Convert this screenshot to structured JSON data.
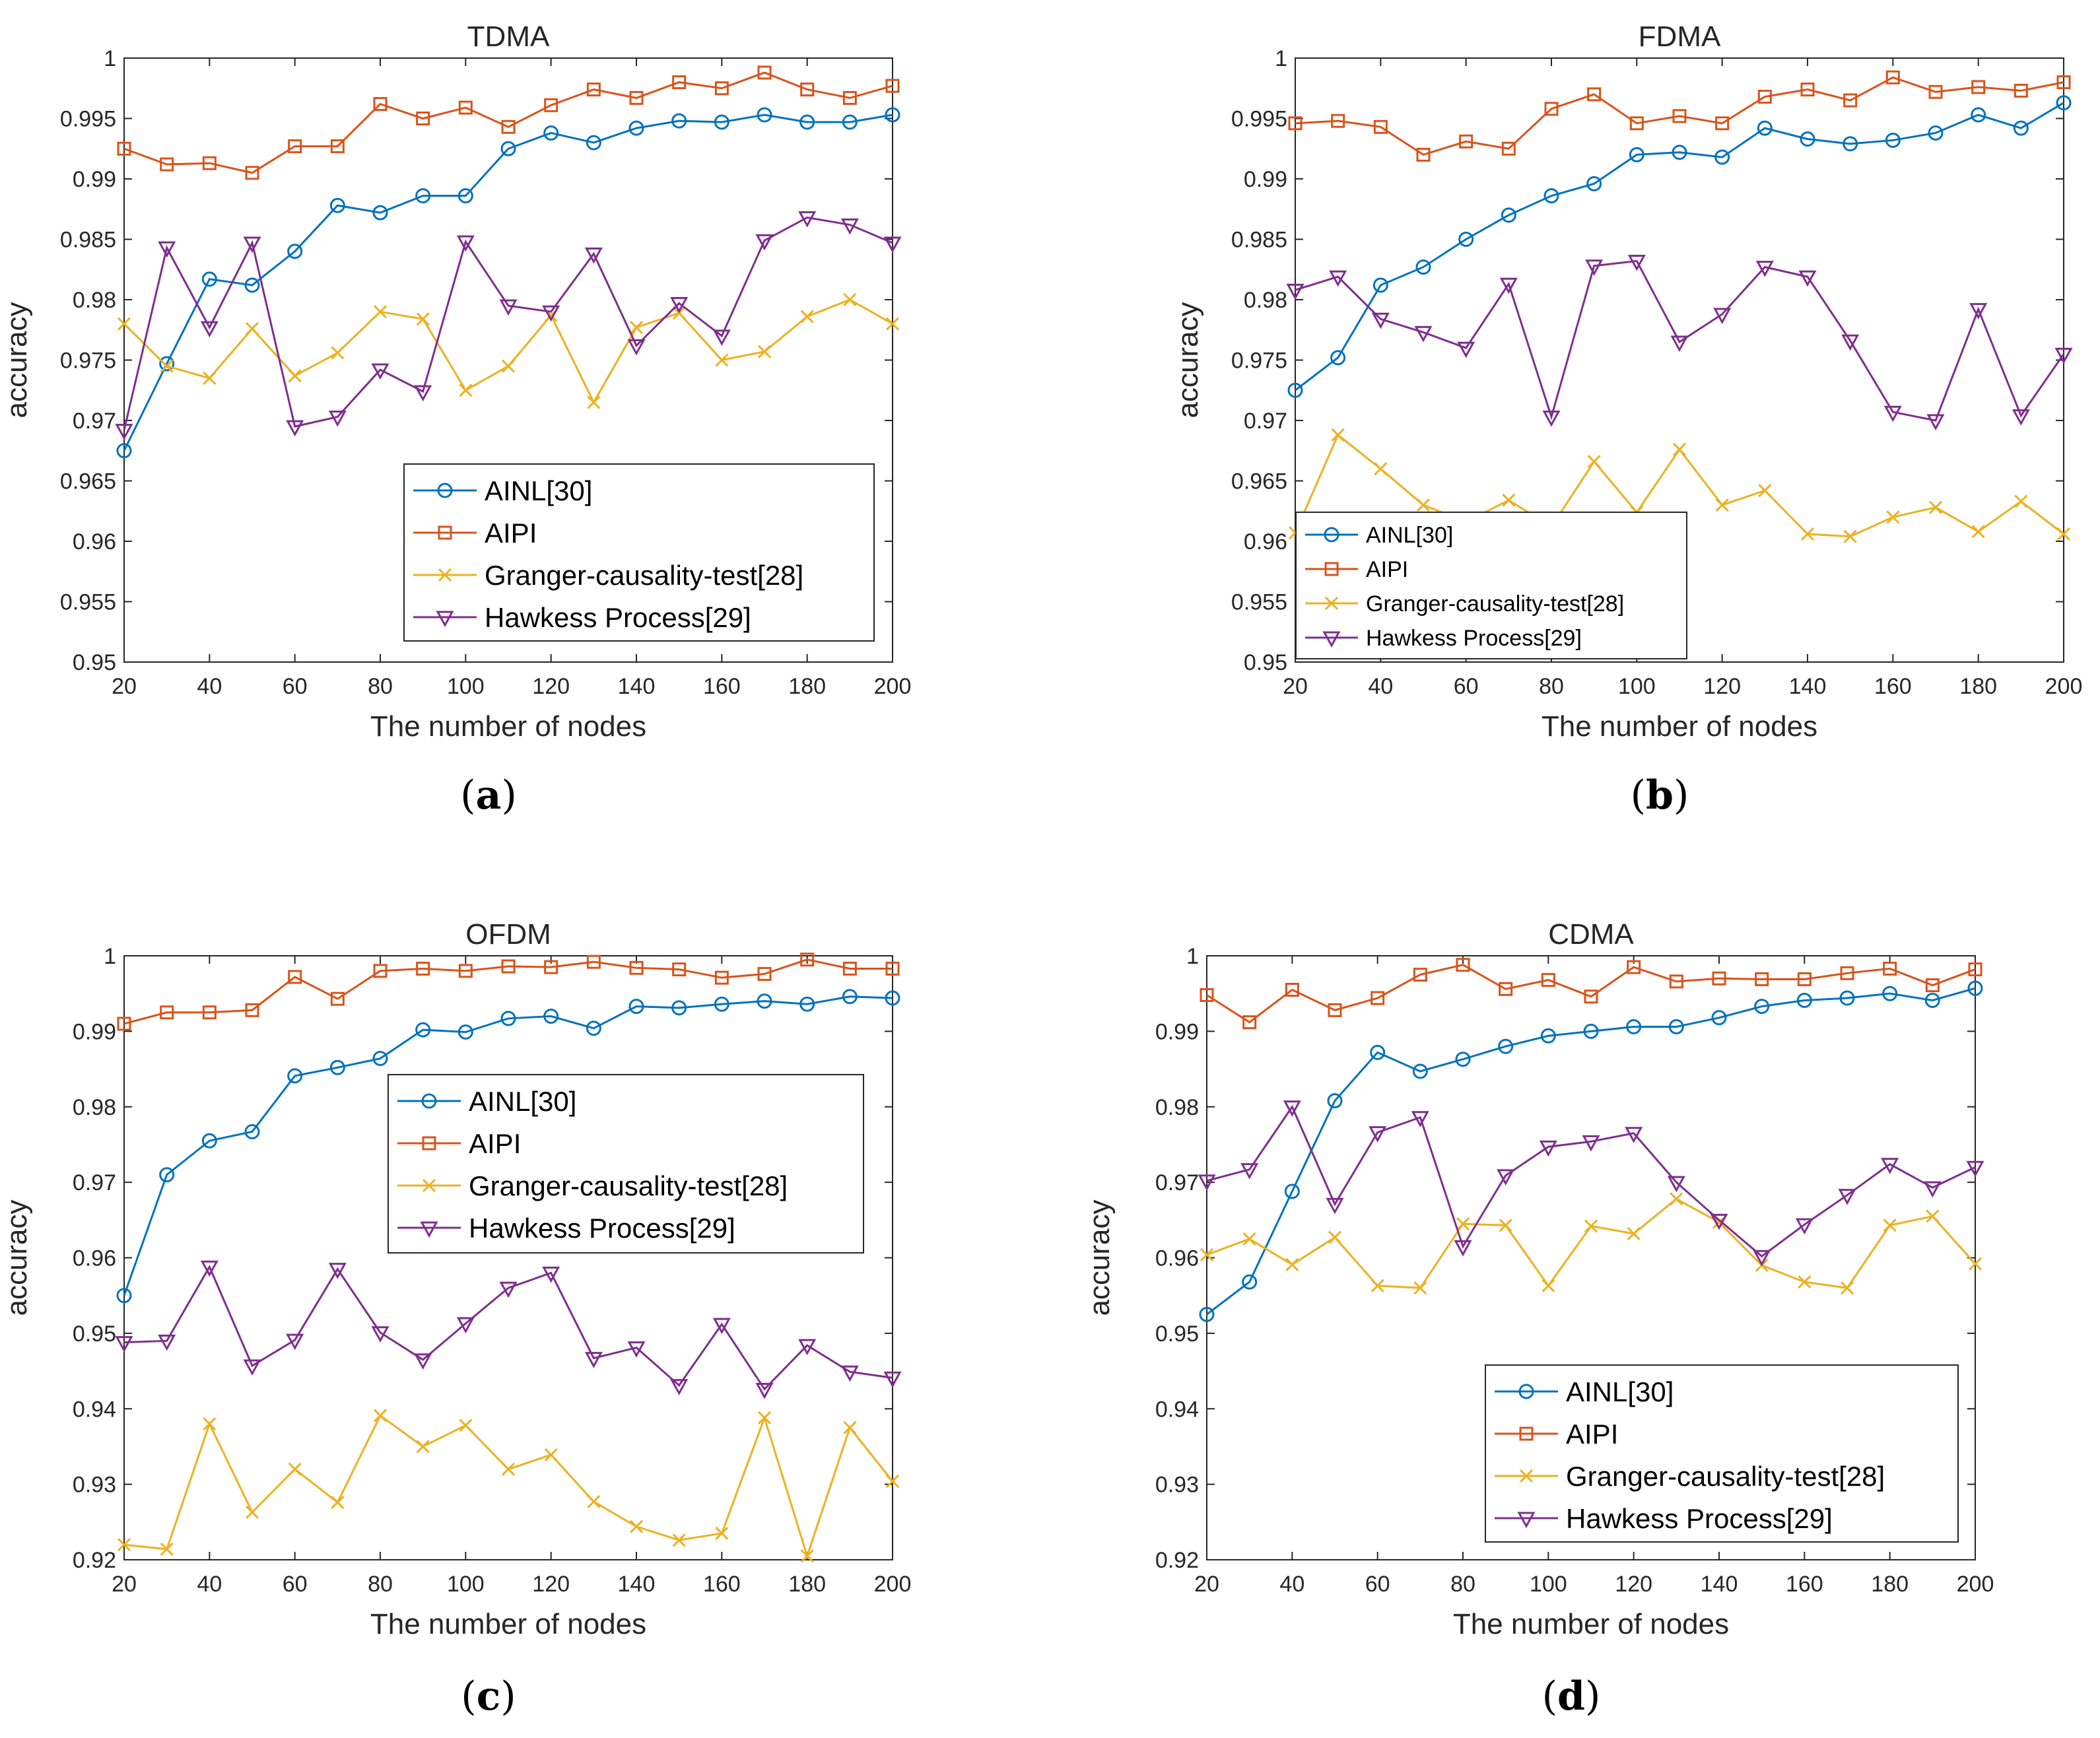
{
  "figure": {
    "x_label": "The number of nodes",
    "y_label": "accuracy",
    "series_style": [
      {
        "name": "AINL[30]",
        "color": "#0072BD",
        "marker": "circle"
      },
      {
        "name": "AIPI",
        "color": "#D95319",
        "marker": "square"
      },
      {
        "name": "Granger-causality-test[28]",
        "color": "#EDB120",
        "marker": "x"
      },
      {
        "name": "Hawkess Process[29]",
        "color": "#7E2F8E",
        "marker": "triangle-down"
      }
    ]
  },
  "chart_data": [
    {
      "type": "line",
      "panel": "a",
      "title": "TDMA",
      "caption": "(a)",
      "caption_letter": "a",
      "xlabel": "The number of nodes",
      "ylabel": "accuracy",
      "xlim": [
        20,
        200
      ],
      "ylim": [
        0.95,
        1
      ],
      "xticks": [
        "20",
        "40",
        "60",
        "80",
        "100",
        "120",
        "140",
        "160",
        "180",
        "200"
      ],
      "yticks": [
        "0.95",
        "0.955",
        "0.96",
        "0.965",
        "0.97",
        "0.975",
        "0.98",
        "0.985",
        "0.99",
        "0.995",
        "1"
      ],
      "legend_position": "lower-right",
      "x": [
        20,
        30,
        40,
        50,
        60,
        70,
        80,
        90,
        100,
        110,
        120,
        130,
        140,
        150,
        160,
        170,
        180,
        190,
        200
      ],
      "series": [
        {
          "name": "AINL[30]",
          "values": [
            0.9675,
            0.9747,
            0.9817,
            0.9812,
            0.984,
            0.9878,
            0.9872,
            0.9886,
            0.9886,
            0.9925,
            0.9938,
            0.993,
            0.9942,
            0.9948,
            0.9947,
            0.9953,
            0.9947,
            0.9947,
            0.9953
          ]
        },
        {
          "name": "AIPI",
          "values": [
            0.9925,
            0.9912,
            0.9913,
            0.9905,
            0.9927,
            0.9927,
            0.9962,
            0.995,
            0.9959,
            0.9943,
            0.9961,
            0.9974,
            0.9967,
            0.998,
            0.9975,
            0.9988,
            0.9974,
            0.9967,
            0.9977
          ]
        },
        {
          "name": "Granger-causality-test[28]",
          "values": [
            0.978,
            0.9745,
            0.9735,
            0.9776,
            0.9737,
            0.9756,
            0.979,
            0.9784,
            0.9725,
            0.9745,
            0.9787,
            0.9715,
            0.9777,
            0.9789,
            0.975,
            0.9757,
            0.9786,
            0.98,
            0.978
          ]
        },
        {
          "name": "Hawkess Process[29]",
          "values": [
            0.9692,
            0.9843,
            0.9777,
            0.9847,
            0.9695,
            0.9703,
            0.9742,
            0.9724,
            0.9848,
            0.9795,
            0.979,
            0.9838,
            0.9762,
            0.9797,
            0.977,
            0.9849,
            0.9868,
            0.9862,
            0.9847
          ]
        }
      ]
    },
    {
      "type": "line",
      "panel": "b",
      "title": "FDMA",
      "caption": "(b)",
      "caption_letter": "b",
      "xlabel": "The number of nodes",
      "ylabel": "accuracy",
      "xlim": [
        20,
        200
      ],
      "ylim": [
        0.95,
        1
      ],
      "xticks": [
        "20",
        "40",
        "60",
        "80",
        "100",
        "120",
        "140",
        "160",
        "180",
        "200"
      ],
      "yticks": [
        "0.95",
        "0.955",
        "0.96",
        "0.965",
        "0.97",
        "0.975",
        "0.98",
        "0.985",
        "0.99",
        "0.995",
        "1"
      ],
      "legend_position": "lower-left",
      "x": [
        20,
        30,
        40,
        50,
        60,
        70,
        80,
        90,
        100,
        110,
        120,
        130,
        140,
        150,
        160,
        170,
        180,
        190,
        200
      ],
      "series": [
        {
          "name": "AINL[30]",
          "values": [
            0.9725,
            0.9752,
            0.9812,
            0.9827,
            0.985,
            0.987,
            0.9886,
            0.9896,
            0.992,
            0.9922,
            0.9918,
            0.9942,
            0.9933,
            0.9929,
            0.9932,
            0.9938,
            0.9953,
            0.9942,
            0.9963
          ]
        },
        {
          "name": "AIPI",
          "values": [
            0.9946,
            0.9948,
            0.9943,
            0.992,
            0.9931,
            0.9925,
            0.9958,
            0.997,
            0.9946,
            0.9952,
            0.9946,
            0.9968,
            0.9974,
            0.9965,
            0.9984,
            0.9972,
            0.9976,
            0.9973,
            0.998
          ]
        },
        {
          "name": "Granger-causality-test[28]",
          "values": [
            0.9607,
            0.9688,
            0.966,
            0.963,
            0.9616,
            0.9634,
            0.9612,
            0.9666,
            0.9624,
            0.9676,
            0.963,
            0.9642,
            0.9606,
            0.9604,
            0.962,
            0.9628,
            0.9608,
            0.9633,
            0.9606
          ]
        },
        {
          "name": "Hawkess Process[29]",
          "values": [
            0.9808,
            0.9819,
            0.9784,
            0.9773,
            0.976,
            0.9813,
            0.9703,
            0.9828,
            0.9832,
            0.9765,
            0.9788,
            0.9827,
            0.9819,
            0.9766,
            0.9707,
            0.97,
            0.9792,
            0.9704,
            0.9755
          ]
        }
      ]
    },
    {
      "type": "line",
      "panel": "c",
      "title": "OFDM",
      "caption": "(c)",
      "caption_letter": "c",
      "xlabel": "The number of nodes",
      "ylabel": "accuracy",
      "xlim": [
        20,
        200
      ],
      "ylim": [
        0.92,
        1
      ],
      "xticks": [
        "20",
        "40",
        "60",
        "80",
        "100",
        "120",
        "140",
        "160",
        "180",
        "200"
      ],
      "yticks": [
        "0.92",
        "0.93",
        "0.94",
        "0.95",
        "0.96",
        "0.97",
        "0.98",
        "0.99",
        "1"
      ],
      "legend_position": "center-right",
      "x": [
        20,
        30,
        40,
        50,
        60,
        70,
        80,
        90,
        100,
        110,
        120,
        130,
        140,
        150,
        160,
        170,
        180,
        190,
        200
      ],
      "series": [
        {
          "name": "AINL[30]",
          "values": [
            0.955,
            0.971,
            0.9755,
            0.9767,
            0.9841,
            0.9852,
            0.9864,
            0.9902,
            0.9899,
            0.9917,
            0.992,
            0.9904,
            0.9933,
            0.9931,
            0.9936,
            0.994,
            0.9936,
            0.9946,
            0.9944
          ]
        },
        {
          "name": "AIPI",
          "values": [
            0.991,
            0.9925,
            0.9925,
            0.9928,
            0.9972,
            0.9943,
            0.998,
            0.9983,
            0.998,
            0.9986,
            0.9985,
            0.9992,
            0.9984,
            0.9982,
            0.9971,
            0.9976,
            0.9995,
            0.9983,
            0.9983
          ]
        },
        {
          "name": "Granger-causality-test[28]",
          "values": [
            0.922,
            0.9214,
            0.938,
            0.9263,
            0.932,
            0.9276,
            0.9391,
            0.935,
            0.9378,
            0.932,
            0.9339,
            0.9277,
            0.9244,
            0.9226,
            0.9235,
            0.9388,
            0.9205,
            0.9375,
            0.9304
          ]
        },
        {
          "name": "Hawkess Process[29]",
          "values": [
            0.9488,
            0.949,
            0.9588,
            0.9457,
            0.9491,
            0.9585,
            0.9501,
            0.9465,
            0.9513,
            0.956,
            0.958,
            0.9467,
            0.9481,
            0.9431,
            0.9512,
            0.9426,
            0.9484,
            0.9449,
            0.9441
          ]
        }
      ]
    },
    {
      "type": "line",
      "panel": "d",
      "title": "CDMA",
      "caption": "(d)",
      "caption_letter": "d",
      "xlabel": "The number of nodes",
      "ylabel": "accuracy",
      "xlim": [
        20,
        200
      ],
      "ylim": [
        0.92,
        1
      ],
      "xticks": [
        "20",
        "40",
        "60",
        "80",
        "100",
        "120",
        "140",
        "160",
        "180",
        "200"
      ],
      "yticks": [
        "0.92",
        "0.93",
        "0.94",
        "0.95",
        "0.96",
        "0.97",
        "0.98",
        "0.99",
        "1"
      ],
      "legend_position": "lower-right",
      "x": [
        20,
        30,
        40,
        50,
        60,
        70,
        80,
        90,
        100,
        110,
        120,
        130,
        140,
        150,
        160,
        170,
        180,
        190,
        200
      ],
      "series": [
        {
          "name": "AINL[30]",
          "values": [
            0.9525,
            0.9568,
            0.9688,
            0.9808,
            0.9872,
            0.9847,
            0.9863,
            0.988,
            0.9894,
            0.99,
            0.9906,
            0.9906,
            0.9918,
            0.9933,
            0.9941,
            0.9944,
            0.995,
            0.9941,
            0.9957
          ]
        },
        {
          "name": "AIPI",
          "values": [
            0.9948,
            0.9912,
            0.9955,
            0.9928,
            0.9944,
            0.9975,
            0.9988,
            0.9956,
            0.9968,
            0.9946,
            0.9985,
            0.9966,
            0.997,
            0.9969,
            0.9969,
            0.9977,
            0.9983,
            0.9961,
            0.9982
          ]
        },
        {
          "name": "Granger-causality-test[28]",
          "values": [
            0.9604,
            0.9625,
            0.9591,
            0.9627,
            0.9563,
            0.956,
            0.9645,
            0.9643,
            0.9563,
            0.9642,
            0.9632,
            0.9678,
            0.9647,
            0.959,
            0.9568,
            0.956,
            0.9643,
            0.9655,
            0.9592
          ]
        },
        {
          "name": "Hawkess Process[29]",
          "values": [
            0.9702,
            0.9717,
            0.98,
            0.9671,
            0.9766,
            0.9786,
            0.9615,
            0.9709,
            0.9747,
            0.9754,
            0.9765,
            0.97,
            0.965,
            0.9602,
            0.9644,
            0.9683,
            0.9724,
            0.9693,
            0.972
          ]
        }
      ]
    }
  ]
}
